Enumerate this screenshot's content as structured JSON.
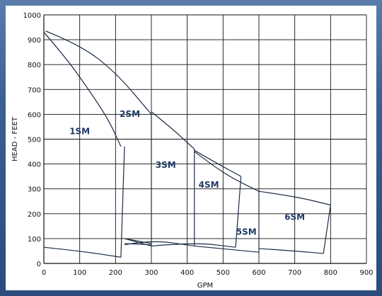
{
  "chart_data": {
    "type": "line",
    "xlabel": "GPM",
    "ylabel": "HEAD - FEET",
    "xlim": [
      0,
      900
    ],
    "ylim": [
      0,
      1000
    ],
    "x_ticks": [
      0,
      100,
      200,
      300,
      400,
      500,
      600,
      700,
      800,
      900
    ],
    "y_ticks": [
      0,
      100,
      200,
      300,
      400,
      500,
      600,
      700,
      800,
      900,
      1000
    ],
    "grid": true,
    "regions": [
      {
        "name": "1SM",
        "label_pos": [
          100,
          520
        ],
        "max_curve": [
          [
            0,
            930
          ],
          [
            60,
            830
          ],
          [
            120,
            710
          ],
          [
            180,
            580
          ],
          [
            215,
            470
          ]
        ],
        "min_curve": [
          [
            0,
            65
          ],
          [
            100,
            50
          ],
          [
            215,
            25
          ]
        ],
        "right_edge": [
          [
            225,
            470
          ],
          [
            215,
            25
          ]
        ]
      },
      {
        "name": "2SM",
        "label_pos": [
          240,
          590
        ],
        "max_curve": [
          [
            5,
            935
          ],
          [
            100,
            880
          ],
          [
            200,
            770
          ],
          [
            300,
            600
          ]
        ],
        "min_curve": [
          [
            225,
            100
          ],
          [
            300,
            70
          ]
        ],
        "right_edge": [
          [
            300,
            600
          ],
          [
            300,
            70
          ]
        ]
      },
      {
        "name": "3SM",
        "label_pos": [
          340,
          385
        ],
        "max_curve": [
          [
            300,
            610
          ],
          [
            360,
            540
          ],
          [
            420,
            460
          ]
        ],
        "min_curve": [
          [
            225,
            75
          ],
          [
            300,
            95
          ],
          [
            420,
            70
          ]
        ],
        "right_edge": [
          [
            420,
            460
          ],
          [
            420,
            70
          ]
        ]
      },
      {
        "name": "4SM",
        "label_pos": [
          460,
          305
        ],
        "max_curve": [
          [
            420,
            455
          ],
          [
            480,
            405
          ],
          [
            550,
            350
          ]
        ],
        "min_curve": [
          [
            300,
            70
          ],
          [
            420,
            85
          ],
          [
            535,
            65
          ]
        ],
        "right_edge": [
          [
            550,
            350
          ],
          [
            535,
            65
          ]
        ]
      },
      {
        "name": "5SM",
        "label_pos": [
          565,
          115
        ],
        "max_curve": [
          [
            420,
            450
          ],
          [
            480,
            385
          ],
          [
            530,
            340
          ],
          [
            600,
            290
          ]
        ],
        "min_curve": [
          [
            420,
            70
          ],
          [
            600,
            45
          ]
        ],
        "right_edge": [
          [
            600,
            290
          ],
          [
            600,
            45
          ]
        ]
      },
      {
        "name": "6SM",
        "label_pos": [
          700,
          175
        ],
        "max_curve": [
          [
            600,
            290
          ],
          [
            700,
            270
          ],
          [
            800,
            235
          ]
        ],
        "min_curve": [
          [
            600,
            60
          ],
          [
            700,
            50
          ],
          [
            780,
            40
          ]
        ],
        "right_edge": [
          [
            800,
            235
          ],
          [
            780,
            40
          ]
        ]
      }
    ],
    "extra_lines": [
      [
        [
          225,
          100
        ],
        [
          300,
          80
        ]
      ],
      [
        [
          225,
          80
        ],
        [
          300,
          75
        ]
      ]
    ]
  }
}
